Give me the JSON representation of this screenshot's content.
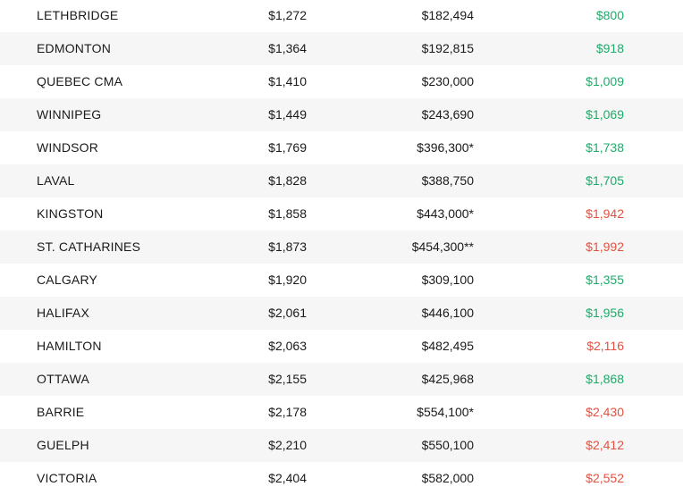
{
  "colors": {
    "positive": "#1faa6a",
    "negative": "#e25241",
    "row_shade": "#f6f6f6",
    "text": "#1a1a1a"
  },
  "rows": [
    {
      "city": "LETHBRIDGE",
      "rent": "$1,272",
      "price": "$182,494",
      "mortgage": "$800",
      "tone": "green"
    },
    {
      "city": "EDMONTON",
      "rent": "$1,364",
      "price": "$192,815",
      "mortgage": "$918",
      "tone": "green"
    },
    {
      "city": "QUEBEC CMA",
      "rent": "$1,410",
      "price": "$230,000",
      "mortgage": "$1,009",
      "tone": "green"
    },
    {
      "city": "WINNIPEG",
      "rent": "$1,449",
      "price": "$243,690",
      "mortgage": "$1,069",
      "tone": "green"
    },
    {
      "city": "WINDSOR",
      "rent": "$1,769",
      "price": "$396,300*",
      "mortgage": "$1,738",
      "tone": "green"
    },
    {
      "city": "LAVAL",
      "rent": "$1,828",
      "price": "$388,750",
      "mortgage": "$1,705",
      "tone": "green"
    },
    {
      "city": "KINGSTON",
      "rent": "$1,858",
      "price": "$443,000*",
      "mortgage": "$1,942",
      "tone": "red"
    },
    {
      "city": "ST. CATHARINES",
      "rent": "$1,873",
      "price": "$454,300**",
      "mortgage": "$1,992",
      "tone": "red"
    },
    {
      "city": "CALGARY",
      "rent": "$1,920",
      "price": "$309,100",
      "mortgage": "$1,355",
      "tone": "green"
    },
    {
      "city": "HALIFAX",
      "rent": "$2,061",
      "price": "$446,100",
      "mortgage": "$1,956",
      "tone": "green"
    },
    {
      "city": "HAMILTON",
      "rent": "$2,063",
      "price": "$482,495",
      "mortgage": "$2,116",
      "tone": "red"
    },
    {
      "city": "OTTAWA",
      "rent": "$2,155",
      "price": "$425,968",
      "mortgage": "$1,868",
      "tone": "green"
    },
    {
      "city": "BARRIE",
      "rent": "$2,178",
      "price": "$554,100*",
      "mortgage": "$2,430",
      "tone": "red"
    },
    {
      "city": "GUELPH",
      "rent": "$2,210",
      "price": "$550,100",
      "mortgage": "$2,412",
      "tone": "red"
    },
    {
      "city": "VICTORIA",
      "rent": "$2,404",
      "price": "$582,000",
      "mortgage": "$2,552",
      "tone": "red"
    }
  ]
}
